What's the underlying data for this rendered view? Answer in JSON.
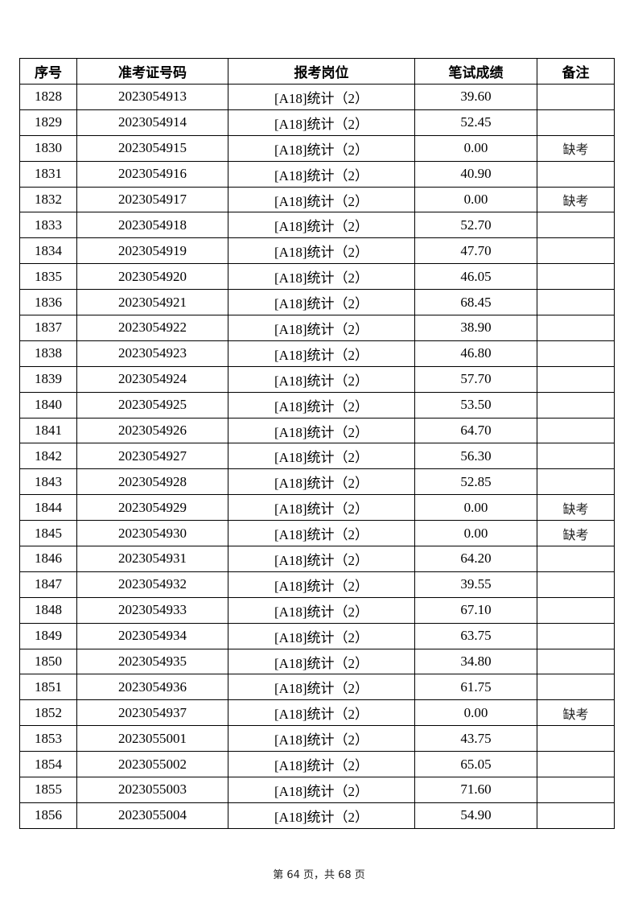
{
  "table": {
    "headers": [
      "序号",
      "准考证号码",
      "报考岗位",
      "笔试成绩",
      "备注"
    ],
    "rows": [
      [
        "1828",
        "2023054913",
        "[A18]统计（2）",
        "39.60",
        ""
      ],
      [
        "1829",
        "2023054914",
        "[A18]统计（2）",
        "52.45",
        ""
      ],
      [
        "1830",
        "2023054915",
        "[A18]统计（2）",
        "0.00",
        "缺考"
      ],
      [
        "1831",
        "2023054916",
        "[A18]统计（2）",
        "40.90",
        ""
      ],
      [
        "1832",
        "2023054917",
        "[A18]统计（2）",
        "0.00",
        "缺考"
      ],
      [
        "1833",
        "2023054918",
        "[A18]统计（2）",
        "52.70",
        ""
      ],
      [
        "1834",
        "2023054919",
        "[A18]统计（2）",
        "47.70",
        ""
      ],
      [
        "1835",
        "2023054920",
        "[A18]统计（2）",
        "46.05",
        ""
      ],
      [
        "1836",
        "2023054921",
        "[A18]统计（2）",
        "68.45",
        ""
      ],
      [
        "1837",
        "2023054922",
        "[A18]统计（2）",
        "38.90",
        ""
      ],
      [
        "1838",
        "2023054923",
        "[A18]统计（2）",
        "46.80",
        ""
      ],
      [
        "1839",
        "2023054924",
        "[A18]统计（2）",
        "57.70",
        ""
      ],
      [
        "1840",
        "2023054925",
        "[A18]统计（2）",
        "53.50",
        ""
      ],
      [
        "1841",
        "2023054926",
        "[A18]统计（2）",
        "64.70",
        ""
      ],
      [
        "1842",
        "2023054927",
        "[A18]统计（2）",
        "56.30",
        ""
      ],
      [
        "1843",
        "2023054928",
        "[A18]统计（2）",
        "52.85",
        ""
      ],
      [
        "1844",
        "2023054929",
        "[A18]统计（2）",
        "0.00",
        "缺考"
      ],
      [
        "1845",
        "2023054930",
        "[A18]统计（2）",
        "0.00",
        "缺考"
      ],
      [
        "1846",
        "2023054931",
        "[A18]统计（2）",
        "64.20",
        ""
      ],
      [
        "1847",
        "2023054932",
        "[A18]统计（2）",
        "39.55",
        ""
      ],
      [
        "1848",
        "2023054933",
        "[A18]统计（2）",
        "67.10",
        ""
      ],
      [
        "1849",
        "2023054934",
        "[A18]统计（2）",
        "63.75",
        ""
      ],
      [
        "1850",
        "2023054935",
        "[A18]统计（2）",
        "34.80",
        ""
      ],
      [
        "1851",
        "2023054936",
        "[A18]统计（2）",
        "61.75",
        ""
      ],
      [
        "1852",
        "2023054937",
        "[A18]统计（2）",
        "0.00",
        "缺考"
      ],
      [
        "1853",
        "2023055001",
        "[A18]统计（2）",
        "43.75",
        ""
      ],
      [
        "1854",
        "2023055002",
        "[A18]统计（2）",
        "65.05",
        ""
      ],
      [
        "1855",
        "2023055003",
        "[A18]统计（2）",
        "71.60",
        ""
      ],
      [
        "1856",
        "2023055004",
        "[A18]统计（2）",
        "54.90",
        ""
      ]
    ]
  },
  "footer": {
    "text": "第 64 页，共 68 页"
  }
}
